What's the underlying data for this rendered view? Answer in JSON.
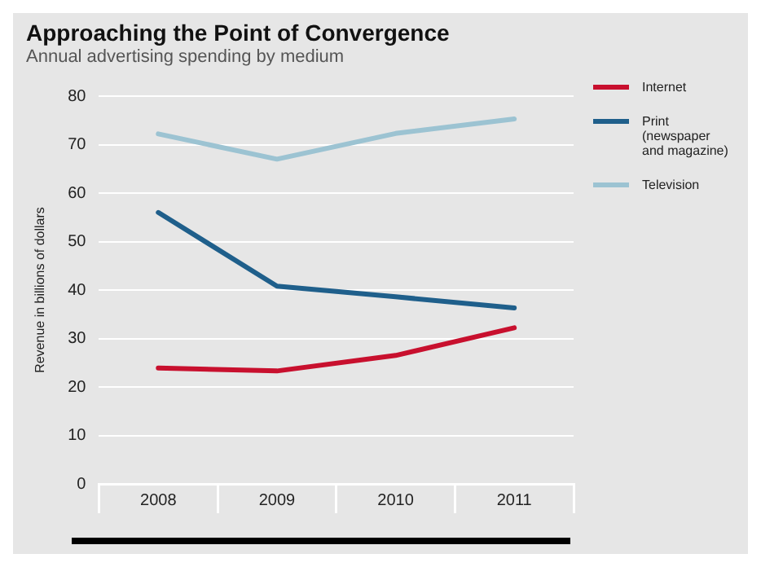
{
  "chart_data": {
    "type": "line",
    "title": "Approaching the Point of Convergence",
    "subtitle": "Annual advertising spending by medium",
    "ylabel": "Revenue in billions of dollars",
    "categories": [
      "2008",
      "2009",
      "2010",
      "2011"
    ],
    "series": [
      {
        "name": "Internet",
        "color": "#c8102e",
        "values": [
          23.9,
          23.3,
          26.5,
          32.2
        ]
      },
      {
        "name": "Print (newspaper and magazine)",
        "color": "#1f5f8b",
        "values": [
          56,
          40.8,
          38.6,
          36.3
        ]
      },
      {
        "name": "Television",
        "color": "#9cc3d2",
        "values": [
          72.2,
          67,
          72.3,
          75.3
        ]
      }
    ],
    "ylim": [
      0,
      80
    ],
    "yticks": [
      0,
      10,
      20,
      30,
      40,
      50,
      60,
      70,
      80
    ],
    "grid": "y",
    "legend": "top right",
    "marker": "none",
    "line_style": "solid"
  }
}
